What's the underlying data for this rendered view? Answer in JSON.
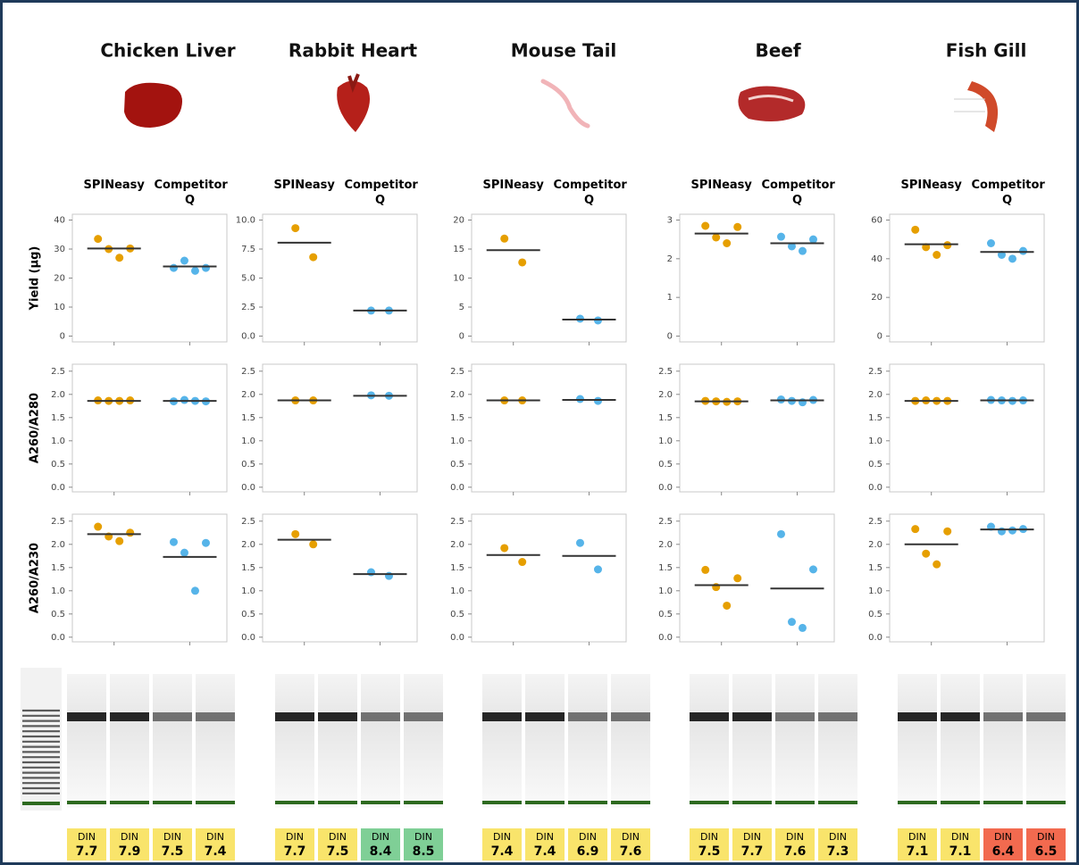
{
  "chart_data": [
    {
      "type": "dot",
      "title": "Chicken Liver",
      "ylabel": "Yield (µg)",
      "ylim": [
        -2,
        42
      ],
      "yticks": [
        0,
        10,
        20,
        30,
        40
      ],
      "series": [
        {
          "name": "SPINeasy",
          "color": "#e69f00",
          "values": [
            33.5,
            30,
            27,
            30.2
          ],
          "mean": 30.2
        },
        {
          "name": "Competitor Q",
          "color": "#56b4e9",
          "values": [
            23.5,
            26,
            22.5,
            23.5
          ],
          "mean": 24
        }
      ]
    },
    {
      "type": "dot",
      "title": "Rabbit Heart",
      "ylim": [
        -0.5,
        10.5
      ],
      "yticks": [
        {
          "value": 0,
          "label": "0.0"
        },
        2.5,
        {
          "value": 5,
          "label": "5.0"
        },
        7.5,
        {
          "value": 10,
          "label": "10.0"
        }
      ],
      "series": [
        {
          "name": "SPINeasy",
          "color": "#e69f00",
          "values": [
            9.3,
            6.8
          ],
          "mean": 8.05
        },
        {
          "name": "Competitor Q",
          "color": "#56b4e9",
          "values": [
            2.2,
            2.2
          ],
          "mean": 2.2
        }
      ]
    },
    {
      "type": "dot",
      "title": "Mouse Tail",
      "ylim": [
        -1,
        21
      ],
      "yticks": [
        0,
        5,
        10,
        15,
        20
      ],
      "series": [
        {
          "name": "SPINeasy",
          "color": "#e69f00",
          "values": [
            16.8,
            12.7
          ],
          "mean": 14.8
        },
        {
          "name": "Competitor Q",
          "color": "#56b4e9",
          "values": [
            3.0,
            2.7
          ],
          "mean": 2.85
        }
      ]
    },
    {
      "type": "dot",
      "title": "Beef",
      "ylim": [
        -0.15,
        3.15
      ],
      "yticks": [
        0,
        1,
        2,
        3
      ],
      "series": [
        {
          "name": "SPINeasy",
          "color": "#e69f00",
          "values": [
            2.85,
            2.55,
            2.4,
            2.82
          ],
          "mean": 2.65
        },
        {
          "name": "Competitor Q",
          "color": "#56b4e9",
          "values": [
            2.57,
            2.32,
            2.2,
            2.5
          ],
          "mean": 2.4
        }
      ]
    },
    {
      "type": "dot",
      "title": "Fish Gill",
      "ylim": [
        -3,
        63
      ],
      "yticks": [
        0,
        20,
        40,
        60
      ],
      "series": [
        {
          "name": "SPINeasy",
          "color": "#e69f00",
          "values": [
            55,
            46,
            42,
            47
          ],
          "mean": 47.5
        },
        {
          "name": "Competitor Q",
          "color": "#56b4e9",
          "values": [
            48,
            42,
            40,
            44
          ],
          "mean": 43.5
        }
      ]
    },
    {
      "type": "dot",
      "ylabel": "A260/A280",
      "ylim": [
        -0.1,
        2.65
      ],
      "yticks": [
        {
          "value": 0,
          "label": "0.0"
        },
        0.5,
        {
          "value": 1,
          "label": "1.0"
        },
        1.5,
        {
          "value": 2,
          "label": "2.0"
        },
        2.5
      ],
      "series": [
        {
          "color": "#e69f00",
          "values": [
            1.87,
            1.86,
            1.86,
            1.87
          ],
          "mean": 1.86
        },
        {
          "color": "#56b4e9",
          "values": [
            1.85,
            1.88,
            1.86,
            1.85
          ],
          "mean": 1.86
        }
      ]
    },
    {
      "type": "dot",
      "ylim": [
        -0.1,
        2.65
      ],
      "yticks": [
        {
          "value": 0,
          "label": "0.0"
        },
        0.5,
        {
          "value": 1,
          "label": "1.0"
        },
        1.5,
        {
          "value": 2,
          "label": "2.0"
        },
        2.5
      ],
      "series": [
        {
          "color": "#e69f00",
          "values": [
            1.87,
            1.87
          ],
          "mean": 1.87
        },
        {
          "color": "#56b4e9",
          "values": [
            1.98,
            1.97
          ],
          "mean": 1.97
        }
      ]
    },
    {
      "type": "dot",
      "ylim": [
        -0.1,
        2.65
      ],
      "yticks": [
        {
          "value": 0,
          "label": "0.0"
        },
        0.5,
        {
          "value": 1,
          "label": "1.0"
        },
        1.5,
        {
          "value": 2,
          "label": "2.0"
        },
        2.5
      ],
      "series": [
        {
          "color": "#e69f00",
          "values": [
            1.87,
            1.87
          ],
          "mean": 1.87
        },
        {
          "color": "#56b4e9",
          "values": [
            1.9,
            1.86
          ],
          "mean": 1.88
        }
      ]
    },
    {
      "type": "dot",
      "ylim": [
        -0.1,
        2.65
      ],
      "yticks": [
        {
          "value": 0,
          "label": "0.0"
        },
        0.5,
        {
          "value": 1,
          "label": "1.0"
        },
        1.5,
        {
          "value": 2,
          "label": "2.0"
        },
        2.5
      ],
      "series": [
        {
          "color": "#e69f00",
          "values": [
            1.86,
            1.85,
            1.84,
            1.85
          ],
          "mean": 1.85
        },
        {
          "color": "#56b4e9",
          "values": [
            1.89,
            1.86,
            1.83,
            1.88
          ],
          "mean": 1.87
        }
      ]
    },
    {
      "type": "dot",
      "ylim": [
        -0.1,
        2.65
      ],
      "yticks": [
        {
          "value": 0,
          "label": "0.0"
        },
        0.5,
        {
          "value": 1,
          "label": "1.0"
        },
        1.5,
        {
          "value": 2,
          "label": "2.0"
        },
        2.5
      ],
      "series": [
        {
          "color": "#e69f00",
          "values": [
            1.86,
            1.87,
            1.86,
            1.86
          ],
          "mean": 1.86
        },
        {
          "color": "#56b4e9",
          "values": [
            1.88,
            1.87,
            1.86,
            1.87
          ],
          "mean": 1.87
        }
      ]
    },
    {
      "type": "dot",
      "ylabel": "A260/A230",
      "ylim": [
        -0.1,
        2.65
      ],
      "yticks": [
        {
          "value": 0,
          "label": "0.0"
        },
        0.5,
        {
          "value": 1,
          "label": "1.0"
        },
        1.5,
        {
          "value": 2,
          "label": "2.0"
        },
        2.5
      ],
      "series": [
        {
          "color": "#e69f00",
          "values": [
            2.38,
            2.17,
            2.07,
            2.25
          ],
          "mean": 2.22
        },
        {
          "color": "#56b4e9",
          "values": [
            2.05,
            1.82,
            1.0,
            2.03
          ],
          "mean": 1.73
        }
      ]
    },
    {
      "type": "dot",
      "ylim": [
        -0.1,
        2.65
      ],
      "yticks": [
        {
          "value": 0,
          "label": "0.0"
        },
        0.5,
        {
          "value": 1,
          "label": "1.0"
        },
        1.5,
        {
          "value": 2,
          "label": "2.0"
        },
        2.5
      ],
      "series": [
        {
          "color": "#e69f00",
          "values": [
            2.22,
            2.0
          ],
          "mean": 2.1
        },
        {
          "color": "#56b4e9",
          "values": [
            1.4,
            1.32
          ],
          "mean": 1.36
        }
      ]
    },
    {
      "type": "dot",
      "ylim": [
        -0.1,
        2.65
      ],
      "yticks": [
        {
          "value": 0,
          "label": "0.0"
        },
        0.5,
        {
          "value": 1,
          "label": "1.0"
        },
        1.5,
        {
          "value": 2,
          "label": "2.0"
        },
        2.5
      ],
      "series": [
        {
          "color": "#e69f00",
          "values": [
            1.92,
            1.62
          ],
          "mean": 1.77
        },
        {
          "color": "#56b4e9",
          "values": [
            2.03,
            1.46
          ],
          "mean": 1.75
        }
      ]
    },
    {
      "type": "dot",
      "ylim": [
        -0.1,
        2.65
      ],
      "yticks": [
        {
          "value": 0,
          "label": "0.0"
        },
        0.5,
        {
          "value": 1,
          "label": "1.0"
        },
        1.5,
        {
          "value": 2,
          "label": "2.0"
        },
        2.5
      ],
      "series": [
        {
          "color": "#e69f00",
          "values": [
            1.45,
            1.08,
            0.68,
            1.27
          ],
          "mean": 1.12
        },
        {
          "color": "#56b4e9",
          "values": [
            2.22,
            0.33,
            0.2,
            1.46
          ],
          "mean": 1.05
        }
      ]
    },
    {
      "type": "dot",
      "ylim": [
        -0.1,
        2.65
      ],
      "yticks": [
        {
          "value": 0,
          "label": "0.0"
        },
        0.5,
        {
          "value": 1,
          "label": "1.0"
        },
        1.5,
        {
          "value": 2,
          "label": "2.0"
        },
        2.5
      ],
      "series": [
        {
          "color": "#e69f00",
          "values": [
            2.33,
            1.8,
            1.57,
            2.28
          ],
          "mean": 2.0
        },
        {
          "color": "#56b4e9",
          "values": [
            2.38,
            2.28,
            2.3,
            2.33
          ],
          "mean": 2.32
        }
      ]
    }
  ],
  "gels": [
    {
      "din_label": "DIN",
      "din": [
        {
          "value": 7.7,
          "label": "7.7"
        },
        {
          "value": 7.9,
          "label": "7.9"
        },
        {
          "value": 7.5,
          "label": "7.5"
        },
        {
          "value": 7.4,
          "label": "7.4"
        }
      ],
      "din_colors": [
        "#f9e46b",
        "#f9e46b",
        "#f9e46b",
        "#f9e46b"
      ]
    },
    {
      "din_label": "DIN",
      "din": [
        {
          "value": 7.7,
          "label": "7.7"
        },
        {
          "value": 7.5,
          "label": "7.5"
        },
        {
          "value": 8.4,
          "label": "8.4"
        },
        {
          "value": 8.5,
          "label": "8.5"
        }
      ],
      "din_colors": [
        "#f9e46b",
        "#f9e46b",
        "#7fcf96",
        "#7fcf96"
      ]
    },
    {
      "din_label": "DIN",
      "din": [
        {
          "value": 7.4,
          "label": "7.4"
        },
        {
          "value": 7.4,
          "label": "7.4"
        },
        {
          "value": 6.9,
          "label": "6.9"
        },
        {
          "value": 7.6,
          "label": "7.6"
        }
      ],
      "din_colors": [
        "#f9e46b",
        "#f9e46b",
        "#f9e46b",
        "#f9e46b"
      ]
    },
    {
      "din_label": "DIN",
      "din": [
        {
          "value": 7.5,
          "label": "7.5"
        },
        {
          "value": 7.7,
          "label": "7.7"
        },
        {
          "value": 7.6,
          "label": "7.6"
        },
        {
          "value": 7.3,
          "label": "7.3"
        }
      ],
      "din_colors": [
        "#f9e46b",
        "#f9e46b",
        "#f9e46b",
        "#f9e46b"
      ]
    },
    {
      "din_label": "DIN",
      "din": [
        {
          "value": 7.1,
          "label": "7.1"
        },
        {
          "value": 7.1,
          "label": "7.1"
        },
        {
          "value": 6.4,
          "label": "6.4"
        },
        {
          "value": 6.5,
          "label": "6.5"
        }
      ],
      "din_colors": [
        "#f9e46b",
        "#f9e46b",
        "#f26a4f",
        "#f26a4f"
      ]
    }
  ]
}
